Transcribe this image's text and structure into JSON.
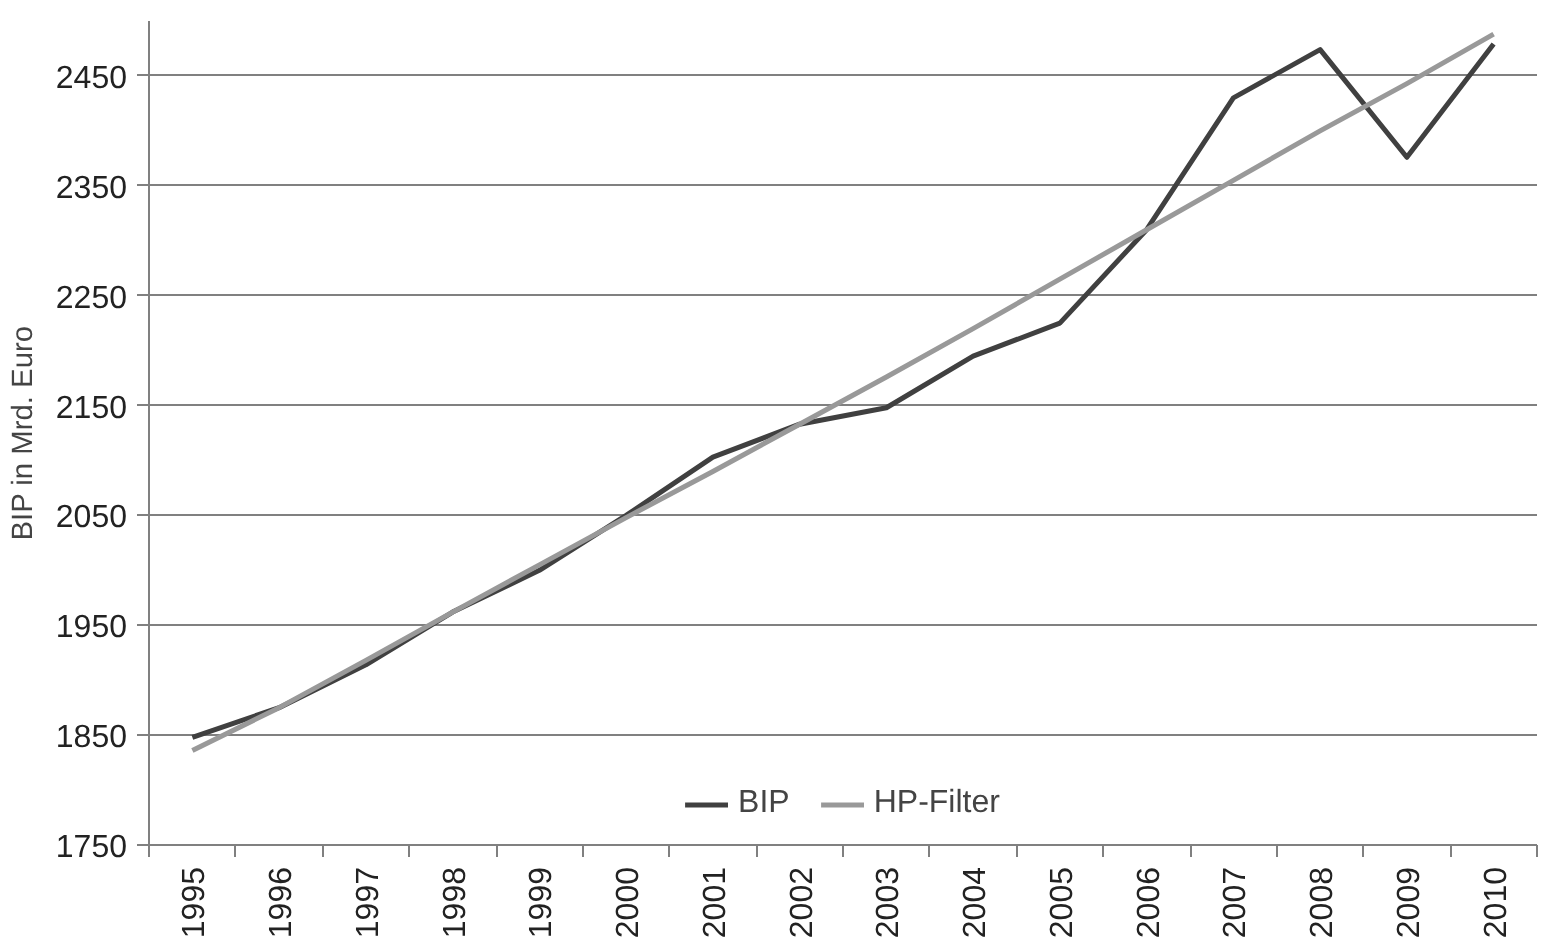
{
  "chart_data": {
    "type": "line",
    "ylabel": "BIP in Mrd. Euro",
    "categories": [
      "1995",
      "1996",
      "1997",
      "1998",
      "1999",
      "2000",
      "2001",
      "2002",
      "2003",
      "2004",
      "2005",
      "2006",
      "2007",
      "2008",
      "2009",
      "2010"
    ],
    "series": [
      {
        "name": "BIP",
        "color": "#404040",
        "values": [
          1848,
          1875,
          1914,
          1962,
          2000,
          2050,
          2103,
          2133,
          2148,
          2195,
          2225,
          2310,
          2430,
          2474,
          2376,
          2479
        ]
      },
      {
        "name": "HP-Filter",
        "color": "#999999",
        "values": [
          1836,
          1875,
          1918,
          1962,
          2005,
          2048,
          2090,
          2133,
          2176,
          2220,
          2265,
          2310,
          2355,
          2400,
          2443,
          2488
        ]
      }
    ],
    "ylim": [
      1750,
      2500
    ],
    "yticks": [
      1750,
      1850,
      1950,
      2050,
      2150,
      2250,
      2350,
      2450
    ],
    "grid": "y",
    "legend": "bottom",
    "marker": "none",
    "line_style": "solid"
  }
}
